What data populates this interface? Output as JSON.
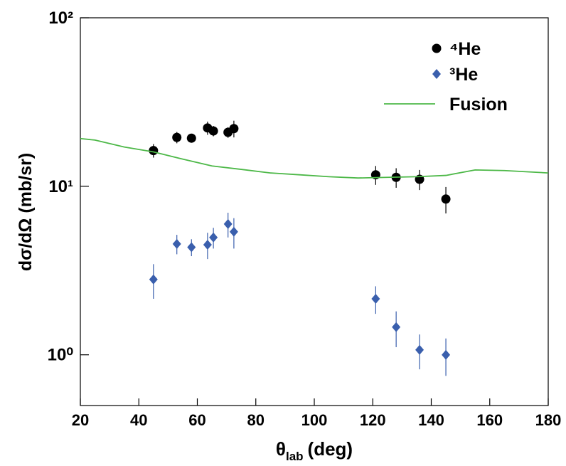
{
  "chart_data": {
    "type": "scatter",
    "x_label": {
      "symbol": "θ",
      "subscript": "lab",
      "unit": "(deg)"
    },
    "y_label": "dσ/dΩ (mb/sr)",
    "xlim": [
      20,
      180
    ],
    "xticks": [
      20,
      40,
      60,
      80,
      100,
      120,
      140,
      160,
      180
    ],
    "ylim": [
      0.5,
      100
    ],
    "log_y": true,
    "yticks": [
      {
        "value": 1,
        "label": "10⁰"
      },
      {
        "value": 10,
        "label": "10¹"
      },
      {
        "value": 100,
        "label": "10²"
      }
    ],
    "legend": "upper right",
    "series": [
      {
        "name": "⁴He",
        "color": "#000000",
        "marker": "circle",
        "x": [
          45,
          53,
          58,
          63.5,
          65.5,
          70.5,
          72.5,
          121,
          128,
          136,
          145
        ],
        "values": [
          16.3,
          19.5,
          19.3,
          22.2,
          21.3,
          20.9,
          22.0,
          11.7,
          11.3,
          11.0,
          8.4
        ],
        "errors": [
          1.5,
          1.5,
          1.0,
          2.0,
          1.5,
          1.5,
          2.5,
          1.5,
          1.5,
          1.5,
          1.5
        ]
      },
      {
        "name": "³He",
        "color": "#3a5fad",
        "marker": "diamond",
        "x": [
          45,
          53,
          58,
          63.5,
          65.5,
          70.5,
          72.5,
          121,
          128,
          136,
          145
        ],
        "values": [
          2.8,
          4.55,
          4.35,
          4.5,
          4.97,
          5.97,
          5.37,
          2.15,
          1.46,
          1.07,
          1.0
        ],
        "errors": [
          0.65,
          0.6,
          0.5,
          0.8,
          0.7,
          1.0,
          1.1,
          0.4,
          0.35,
          0.25,
          0.25
        ]
      },
      {
        "name": "Fusion",
        "color": "#4db848",
        "marker": "line",
        "x": [
          20,
          25,
          35,
          45,
          55,
          65,
          75,
          85,
          95,
          105,
          115,
          125,
          135,
          145,
          155,
          165,
          180
        ],
        "values": [
          19.2,
          18.8,
          17.1,
          16.0,
          14.5,
          13.2,
          12.6,
          12.0,
          11.7,
          11.4,
          11.2,
          11.3,
          11.4,
          11.6,
          12.5,
          12.4,
          12.0
        ]
      }
    ]
  }
}
